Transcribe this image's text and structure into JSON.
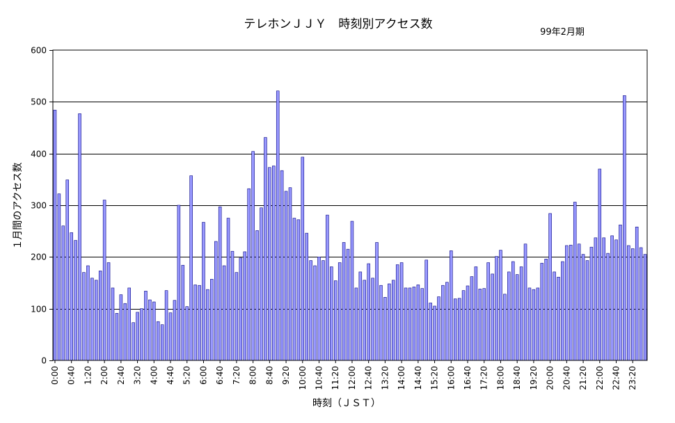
{
  "chart_data": {
    "type": "bar",
    "title": "テレホンＪＪＹ　時刻別アクセス数",
    "subtitle": "99年2月期",
    "xlabel": "時刻（ＪＳＴ）",
    "ylabel": "１月間のアクセス数",
    "ylim": [
      0,
      600
    ],
    "yticks": [
      0,
      100,
      200,
      300,
      400,
      500,
      600
    ],
    "grid": true,
    "legend": "none",
    "bar_color": "#9999ff",
    "bar_edge_color": "#000080",
    "categories": [
      "0:00",
      "0:10",
      "0:20",
      "0:30",
      "0:40",
      "0:50",
      "1:00",
      "1:10",
      "1:20",
      "1:30",
      "1:40",
      "1:50",
      "2:00",
      "2:10",
      "2:20",
      "2:30",
      "2:40",
      "2:50",
      "3:00",
      "3:10",
      "3:20",
      "3:30",
      "3:40",
      "3:50",
      "4:00",
      "4:10",
      "4:20",
      "4:30",
      "4:40",
      "4:50",
      "5:00",
      "5:10",
      "5:20",
      "5:30",
      "5:40",
      "5:50",
      "6:00",
      "6:10",
      "6:20",
      "6:30",
      "6:40",
      "6:50",
      "7:00",
      "7:10",
      "7:20",
      "7:30",
      "7:40",
      "7:50",
      "8:00",
      "8:10",
      "8:20",
      "8:30",
      "8:40",
      "8:50",
      "9:00",
      "9:10",
      "9:20",
      "9:30",
      "9:40",
      "9:50",
      "10:00",
      "10:10",
      "10:20",
      "10:30",
      "10:40",
      "10:50",
      "11:00",
      "11:10",
      "11:20",
      "11:30",
      "11:40",
      "11:50",
      "12:00",
      "12:10",
      "12:20",
      "12:30",
      "12:40",
      "12:50",
      "13:00",
      "13:10",
      "13:20",
      "13:30",
      "13:40",
      "13:50",
      "14:00",
      "14:10",
      "14:20",
      "14:30",
      "14:40",
      "14:50",
      "15:00",
      "15:10",
      "15:20",
      "15:30",
      "15:40",
      "15:50",
      "16:00",
      "16:10",
      "16:20",
      "16:30",
      "16:40",
      "16:50",
      "17:00",
      "17:10",
      "17:20",
      "17:30",
      "17:40",
      "17:50",
      "18:00",
      "18:10",
      "18:20",
      "18:30",
      "18:40",
      "18:50",
      "19:00",
      "19:10",
      "19:20",
      "19:30",
      "19:40",
      "19:50",
      "20:00",
      "20:10",
      "20:20",
      "20:30",
      "20:40",
      "20:50",
      "21:00",
      "21:10",
      "21:20",
      "21:30",
      "21:40",
      "21:50",
      "22:00",
      "22:10",
      "22:20",
      "22:30",
      "22:40",
      "22:50",
      "23:00",
      "23:10",
      "23:20",
      "23:30",
      "23:40",
      "23:50"
    ],
    "xtick_labels": [
      "0:00",
      "0:40",
      "1:20",
      "2:00",
      "2:40",
      "3:20",
      "4:00",
      "4:40",
      "5:20",
      "6:00",
      "6:40",
      "7:20",
      "8:00",
      "8:40",
      "9:20",
      "10:00",
      "10:40",
      "11:20",
      "12:00",
      "12:40",
      "13:20",
      "14:00",
      "14:40",
      "15:20",
      "16:00",
      "16:40",
      "17:20",
      "18:00",
      "18:40",
      "19:20",
      "20:00",
      "20:40",
      "21:20",
      "22:00",
      "22:40",
      "23:20"
    ],
    "values": [
      484,
      322,
      260,
      349,
      247,
      232,
      477,
      170,
      183,
      159,
      155,
      173,
      310,
      189,
      140,
      91,
      127,
      110,
      140,
      73,
      93,
      100,
      134,
      117,
      113,
      75,
      69,
      135,
      92,
      116,
      300,
      184,
      104,
      357,
      146,
      145,
      267,
      137,
      157,
      230,
      297,
      183,
      275,
      211,
      170,
      198,
      210,
      332,
      404,
      251,
      295,
      431,
      373,
      376,
      521,
      367,
      327,
      334,
      275,
      272,
      393,
      246,
      193,
      183,
      200,
      193,
      281,
      181,
      154,
      189,
      228,
      215,
      269,
      140,
      171,
      155,
      187,
      159,
      228,
      145,
      122,
      148,
      155,
      185,
      189,
      140,
      140,
      142,
      146,
      139,
      194,
      111,
      105,
      123,
      145,
      151,
      212,
      119,
      120,
      135,
      144,
      162,
      181,
      138,
      139,
      189,
      167,
      201,
      213,
      128,
      171,
      191,
      166,
      181,
      225,
      140,
      137,
      140,
      188,
      196,
      284,
      171,
      161,
      191,
      222,
      223,
      306,
      225,
      205,
      193,
      219,
      237,
      370,
      237,
      207,
      241,
      233,
      262,
      512,
      222,
      216,
      258,
      218,
      205
    ]
  }
}
